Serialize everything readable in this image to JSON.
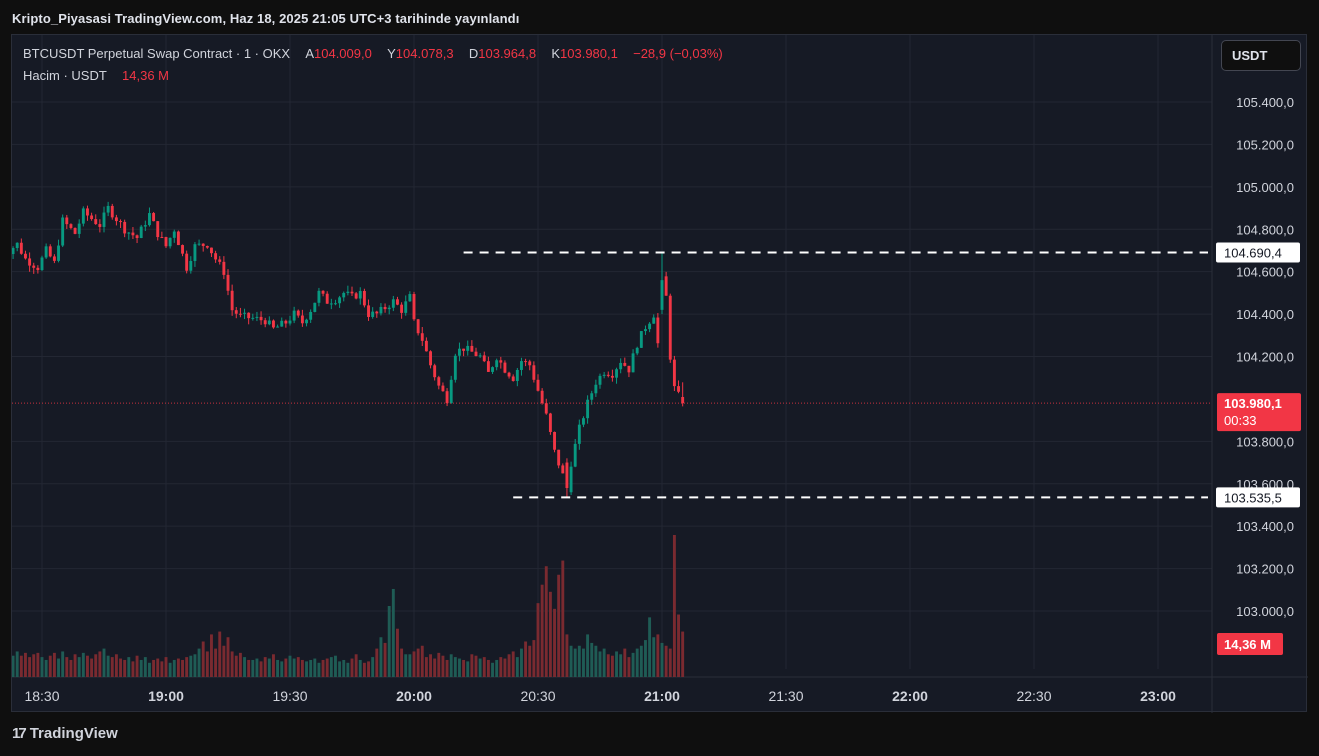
{
  "header": {
    "published_text": "Kripto_Piyasasi TradingView.com, Haz 18, 2025 21:05 UTC+3 tarihinde yayınlandı"
  },
  "legend": {
    "symbol": "BTCUSDT Perpetual Swap Contract · 1 · OKX",
    "open_label": "A",
    "open_value": "104.009,0",
    "high_label": "Y",
    "high_value": "104.078,3",
    "low_label": "D",
    "low_value": "103.964,8",
    "close_label": "K",
    "close_value": "103.980,1",
    "change": "−28,9 (−0,03%)",
    "volume_label": "Hacim · USDT",
    "volume_value": "14,36 M"
  },
  "currency_button": "USDT",
  "footer": {
    "logo_text": "TradingView",
    "logo_mark": "17"
  },
  "chart_data": {
    "type": "candlestick",
    "title": "BTCUSDT Perpetual Swap Contract · 1 · OKX",
    "interval": "1 minute",
    "y_ticks": [
      "105.400,0",
      "105.200,0",
      "105.000,0",
      "104.800,0",
      "104.600,0",
      "104.400,0",
      "104.200,0",
      "103.800,0",
      "103.600,0",
      "103.400,0",
      "103.200,0",
      "103.000,0"
    ],
    "y_tick_values": [
      105400,
      105200,
      105000,
      104800,
      104600,
      104400,
      104200,
      103800,
      103600,
      103400,
      103200,
      103000
    ],
    "ylim": [
      102800,
      105600
    ],
    "x_ticks": [
      "18:30",
      "19:00",
      "19:30",
      "20:00",
      "20:30",
      "21:00",
      "21:30",
      "22:00",
      "22:30",
      "23:00"
    ],
    "x_tick_bold": [
      false,
      true,
      false,
      true,
      false,
      true,
      false,
      true,
      false,
      true
    ],
    "x_start_time": "18:20",
    "x_end_time": "23:28",
    "last_candle_time": "21:05",
    "candle_minutes": 1,
    "price_path": [
      {
        "t": "18:20",
        "p": 104560
      },
      {
        "t": "18:22",
        "p": 104700
      },
      {
        "t": "18:24",
        "p": 104730
      },
      {
        "t": "18:26",
        "p": 104660
      },
      {
        "t": "18:29",
        "p": 104620
      },
      {
        "t": "18:31",
        "p": 104700
      },
      {
        "t": "18:33",
        "p": 104640
      },
      {
        "t": "18:35",
        "p": 104840
      },
      {
        "t": "18:38",
        "p": 104780
      },
      {
        "t": "18:40",
        "p": 104880
      },
      {
        "t": "18:44",
        "p": 104820
      },
      {
        "t": "18:46",
        "p": 104900
      },
      {
        "t": "18:48",
        "p": 104850
      },
      {
        "t": "18:50",
        "p": 104800
      },
      {
        "t": "18:53",
        "p": 104760
      },
      {
        "t": "18:56",
        "p": 104870
      },
      {
        "t": "18:58",
        "p": 104780
      },
      {
        "t": "19:00",
        "p": 104720
      },
      {
        "t": "19:02",
        "p": 104800
      },
      {
        "t": "19:05",
        "p": 104620
      },
      {
        "t": "19:07",
        "p": 104720
      },
      {
        "t": "19:10",
        "p": 104730
      },
      {
        "t": "19:12",
        "p": 104660
      },
      {
        "t": "19:14",
        "p": 104600
      },
      {
        "t": "19:16",
        "p": 104420
      },
      {
        "t": "19:18",
        "p": 104390
      },
      {
        "t": "19:21",
        "p": 104380
      },
      {
        "t": "19:24",
        "p": 104370
      },
      {
        "t": "19:26",
        "p": 104330
      },
      {
        "t": "19:29",
        "p": 104360
      },
      {
        "t": "19:31",
        "p": 104400
      },
      {
        "t": "19:33",
        "p": 104360
      },
      {
        "t": "19:35",
        "p": 104420
      },
      {
        "t": "19:37",
        "p": 104500
      },
      {
        "t": "19:39",
        "p": 104460
      },
      {
        "t": "19:41",
        "p": 104470
      },
      {
        "t": "19:43",
        "p": 104500
      },
      {
        "t": "19:45",
        "p": 104480
      },
      {
        "t": "19:47",
        "p": 104500
      },
      {
        "t": "19:49",
        "p": 104400
      },
      {
        "t": "19:51",
        "p": 104400
      },
      {
        "t": "19:53",
        "p": 104430
      },
      {
        "t": "19:55",
        "p": 104460
      },
      {
        "t": "19:57",
        "p": 104420
      },
      {
        "t": "19:59",
        "p": 104480
      },
      {
        "t": "20:00",
        "p": 104360
      },
      {
        "t": "20:02",
        "p": 104280
      },
      {
        "t": "20:04",
        "p": 104160
      },
      {
        "t": "20:06",
        "p": 104060
      },
      {
        "t": "20:08",
        "p": 104000
      },
      {
        "t": "20:10",
        "p": 104220
      },
      {
        "t": "20:12",
        "p": 104240
      },
      {
        "t": "20:14",
        "p": 104220
      },
      {
        "t": "20:16",
        "p": 104200
      },
      {
        "t": "20:18",
        "p": 104120
      },
      {
        "t": "20:20",
        "p": 104200
      },
      {
        "t": "20:22",
        "p": 104140
      },
      {
        "t": "20:24",
        "p": 104100
      },
      {
        "t": "20:26",
        "p": 104180
      },
      {
        "t": "20:28",
        "p": 104160
      },
      {
        "t": "20:30",
        "p": 104040
      },
      {
        "t": "20:32",
        "p": 103920
      },
      {
        "t": "20:34",
        "p": 103750
      },
      {
        "t": "20:36",
        "p": 103640
      },
      {
        "t": "20:37",
        "p": 103560
      },
      {
        "t": "20:38",
        "p": 103700
      },
      {
        "t": "20:40",
        "p": 103860
      },
      {
        "t": "20:42",
        "p": 103980
      },
      {
        "t": "20:44",
        "p": 104080
      },
      {
        "t": "20:46",
        "p": 104130
      },
      {
        "t": "20:48",
        "p": 104120
      },
      {
        "t": "20:50",
        "p": 104180
      },
      {
        "t": "20:52",
        "p": 104140
      },
      {
        "t": "20:54",
        "p": 104260
      },
      {
        "t": "20:56",
        "p": 104340
      },
      {
        "t": "20:58",
        "p": 104400
      },
      {
        "t": "20:59",
        "p": 104260
      },
      {
        "t": "21:00",
        "p": 104560
      },
      {
        "t": "21:01",
        "p": 104480
      },
      {
        "t": "21:02",
        "p": 104200
      },
      {
        "t": "21:03",
        "p": 104050
      },
      {
        "t": "21:05",
        "p": 103980
      }
    ],
    "spike_candle": {
      "t": "21:00",
      "open": 104420,
      "high": 104690.4,
      "low": 104400,
      "close": 104560
    },
    "dip_candle": {
      "t": "20:37",
      "open": 103700,
      "high": 103720,
      "low": 103535.5,
      "close": 103580
    },
    "volume_bars": [
      0.18,
      0.14,
      0.16,
      0.15,
      0.18,
      0.15,
      0.17,
      0.14,
      0.16,
      0.17,
      0.14,
      0.12,
      0.15,
      0.17,
      0.13,
      0.18,
      0.14,
      0.12,
      0.16,
      0.14,
      0.17,
      0.15,
      0.13,
      0.16,
      0.18,
      0.2,
      0.15,
      0.14,
      0.16,
      0.13,
      0.12,
      0.14,
      0.11,
      0.15,
      0.12,
      0.14,
      0.1,
      0.12,
      0.13,
      0.11,
      0.14,
      0.1,
      0.12,
      0.13,
      0.12,
      0.14,
      0.15,
      0.16,
      0.2,
      0.25,
      0.18,
      0.3,
      0.2,
      0.32,
      0.22,
      0.28,
      0.18,
      0.15,
      0.17,
      0.14,
      0.12,
      0.12,
      0.13,
      0.11,
      0.14,
      0.13,
      0.16,
      0.12,
      0.11,
      0.13,
      0.15,
      0.13,
      0.14,
      0.12,
      0.11,
      0.12,
      0.13,
      0.1,
      0.12,
      0.13,
      0.14,
      0.15,
      0.11,
      0.12,
      0.1,
      0.13,
      0.16,
      0.12,
      0.1,
      0.11,
      0.14,
      0.2,
      0.28,
      0.24,
      0.5,
      0.62,
      0.34,
      0.2,
      0.16,
      0.16,
      0.18,
      0.2,
      0.22,
      0.14,
      0.16,
      0.13,
      0.17,
      0.15,
      0.12,
      0.16,
      0.14,
      0.13,
      0.12,
      0.11,
      0.16,
      0.15,
      0.13,
      0.14,
      0.12,
      0.1,
      0.12,
      0.14,
      0.13,
      0.16,
      0.18,
      0.14,
      0.2,
      0.25,
      0.22,
      0.26,
      0.52,
      0.65,
      0.78,
      0.6,
      0.48,
      0.72,
      0.82,
      0.3,
      0.22,
      0.2,
      0.22,
      0.2,
      0.3,
      0.24,
      0.22,
      0.18,
      0.2,
      0.16,
      0.15,
      0.18,
      0.16,
      0.2,
      0.14,
      0.17,
      0.2,
      0.22,
      0.26,
      0.42,
      0.28,
      0.3,
      0.24,
      0.22,
      0.2,
      1.0,
      0.44,
      0.32,
      0.26,
      0.3,
      0.33
    ],
    "volume_pane_ylim_fraction_max": 1.0,
    "horizontal_lines": [
      {
        "value": 104690.4,
        "label": "104.690,4",
        "style": "dashed",
        "color": "#ffffff",
        "start_time": "20:12"
      },
      {
        "value": 103535.5,
        "label": "103.535,5",
        "style": "dashed",
        "color": "#ffffff",
        "start_time": "20:24"
      }
    ],
    "last_price": {
      "value": 103980.1,
      "label": "103.980,1",
      "countdown": "00:33",
      "color": "#f23645"
    },
    "volume_tag": {
      "label": "14,36 M",
      "color": "#f23645"
    },
    "colors": {
      "up": "#089981",
      "down": "#f23645",
      "volume_up": "#1f5c55",
      "volume_down": "#7a2a30",
      "background": "#161a25",
      "grid": "#232733",
      "text": "#d1d4dc"
    },
    "grid": true
  }
}
